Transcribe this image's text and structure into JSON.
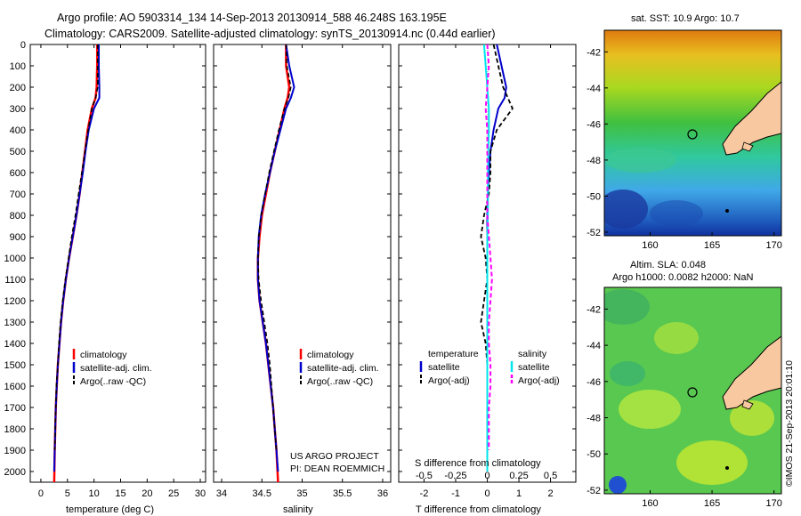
{
  "header": {
    "line1": "Argo profile: AO 5903314_134 14-Sep-2013 20130914_588 46.248S 163.195E",
    "line2": "Climatology: CARS2009. Satellite-adjusted climatology: synTS_20130914.nc (0.44d earlier)"
  },
  "colors": {
    "climatology": "#ff0000",
    "satellite_adj": "#0000cc",
    "argo": "#000000",
    "salinity_sat": "#00e5ee",
    "salinity_argo": "#ff00ff",
    "land": "#f8c8a0"
  },
  "depth_ticks": [
    "0",
    "100",
    "200",
    "300",
    "400",
    "500",
    "600",
    "700",
    "800",
    "900",
    "1000",
    "1100",
    "1200",
    "1300",
    "1400",
    "1500",
    "1600",
    "1700",
    "1800",
    "1900",
    "2000"
  ],
  "panel_temp": {
    "xlabel": "temperature (deg C)",
    "xticks": [
      "0",
      "5",
      "10",
      "15",
      "20",
      "25",
      "30"
    ],
    "legend": [
      "climatology",
      "satellite-adj. clim.",
      "Argo(..raw -QC)"
    ]
  },
  "panel_sal": {
    "xlabel": "salinity",
    "xticks": [
      "34",
      "34.5",
      "35",
      "35.5",
      "36"
    ],
    "legend": [
      "climatology",
      "satellite-adj. clim.",
      "Argo(..raw -QC)"
    ],
    "note1": "US ARGO PROJECT",
    "note2": "PI: DEAN ROEMMICH"
  },
  "panel_diff": {
    "xlabel": "T difference from climatology",
    "xlabel_top": "S difference from climatology",
    "xticks_bottom": [
      "-2",
      "-1",
      "0",
      "1",
      "2"
    ],
    "xticks_top": [
      "-0.5",
      "-0.25",
      "0",
      "0.25",
      "0.5"
    ],
    "legend_temp_title": "temperature",
    "legend_sal_title": "salinity",
    "legend_temp": [
      "satellite",
      "Argo(-adj)"
    ],
    "legend_sal": [
      "satellite",
      "Argo(-adj)"
    ]
  },
  "map_sst": {
    "title": "sat. SST: 10.9  Argo: 10.7",
    "yticks": [
      "-42",
      "-44",
      "-46",
      "-48",
      "-50",
      "-52"
    ],
    "xticks": [
      "160",
      "165",
      "170"
    ]
  },
  "map_sla": {
    "title1": "Altim. SLA: 0.048",
    "title2": "Argo h1000: 0.0082 h2000: NaN",
    "yticks": [
      "-42",
      "-44",
      "-46",
      "-48",
      "-50",
      "-52"
    ],
    "xticks": [
      "160",
      "165",
      "170"
    ]
  },
  "footer": "©IMOS 21-Sep-2013 20:01:10",
  "chart_data": [
    {
      "type": "line",
      "xlabel": "temperature (deg C)",
      "ylabel": "",
      "xlim": [
        -2,
        31
      ],
      "ylim": [
        2050,
        0
      ],
      "series": [
        {
          "name": "climatology",
          "x": [
            10.6,
            10.6,
            10.5,
            10.3,
            9.6,
            8.8,
            8.3,
            7.8,
            7.3,
            6.7,
            6.0,
            5.3,
            4.7,
            4.2,
            3.8,
            3.5,
            3.2,
            3.0,
            2.8,
            2.7,
            2.6,
            2.5
          ],
          "y": [
            0,
            100,
            200,
            250,
            300,
            400,
            500,
            600,
            700,
            800,
            900,
            1000,
            1100,
            1200,
            1300,
            1400,
            1500,
            1600,
            1700,
            1800,
            1900,
            2050
          ]
        },
        {
          "name": "satellite-adj. clim.",
          "x": [
            10.9,
            10.9,
            11.0,
            11.0,
            10.0,
            9.0,
            8.4,
            7.9,
            7.3,
            6.7,
            6.0,
            5.3,
            4.7,
            4.2,
            3.8,
            3.5,
            3.2,
            3.0,
            2.8,
            2.7,
            2.6,
            2.5
          ],
          "y": [
            0,
            100,
            200,
            250,
            300,
            400,
            500,
            600,
            700,
            800,
            900,
            1000,
            1100,
            1200,
            1300,
            1400,
            1500,
            1600,
            1700,
            1800,
            1900,
            2000
          ]
        },
        {
          "name": "Argo(..raw -QC)",
          "x": [
            10.7,
            10.7,
            10.7,
            10.3,
            9.6,
            8.9,
            8.3,
            7.7,
            7.1,
            6.5,
            5.8,
            5.2,
            4.6,
            4.1,
            3.7,
            3.4,
            3.2,
            2.9,
            2.8,
            2.7,
            2.6
          ],
          "y": [
            0,
            100,
            200,
            250,
            300,
            400,
            500,
            600,
            700,
            800,
            900,
            1000,
            1100,
            1200,
            1300,
            1400,
            1500,
            1600,
            1700,
            1800,
            1900
          ]
        }
      ]
    },
    {
      "type": "line",
      "xlabel": "salinity",
      "ylabel": "",
      "xlim": [
        33.9,
        36.1
      ],
      "ylim": [
        2050,
        0
      ],
      "series": [
        {
          "name": "climatology",
          "x": [
            34.8,
            34.8,
            34.84,
            34.82,
            34.78,
            34.72,
            34.66,
            34.6,
            34.55,
            34.5,
            34.47,
            34.45,
            34.45,
            34.47,
            34.51,
            34.55,
            34.58,
            34.61,
            34.64,
            34.66,
            34.68,
            34.7
          ],
          "y": [
            0,
            100,
            200,
            250,
            300,
            400,
            500,
            600,
            700,
            800,
            900,
            1000,
            1100,
            1200,
            1300,
            1400,
            1500,
            1600,
            1700,
            1800,
            1900,
            2050
          ]
        },
        {
          "name": "satellite-adj. clim.",
          "x": [
            34.8,
            34.84,
            34.9,
            34.86,
            34.8,
            34.73,
            34.66,
            34.6,
            34.54,
            34.49,
            34.46,
            34.45,
            34.45,
            34.47,
            34.51,
            34.55,
            34.58,
            34.61,
            34.64,
            34.66,
            34.68,
            34.7
          ],
          "y": [
            0,
            100,
            200,
            250,
            300,
            400,
            500,
            600,
            700,
            800,
            900,
            1000,
            1100,
            1200,
            1300,
            1400,
            1500,
            1600,
            1700,
            1800,
            1900,
            2000
          ]
        },
        {
          "name": "Argo(..raw -QC)",
          "x": [
            34.8,
            34.81,
            34.86,
            34.83,
            34.78,
            34.71,
            34.65,
            34.59,
            34.54,
            34.49,
            34.46,
            34.45,
            34.46,
            34.49,
            34.53,
            34.57,
            34.6,
            34.62,
            34.64,
            34.66,
            34.68
          ],
          "y": [
            0,
            100,
            200,
            250,
            300,
            400,
            500,
            600,
            700,
            800,
            900,
            1000,
            1100,
            1200,
            1300,
            1400,
            1500,
            1600,
            1700,
            1800,
            1900
          ]
        }
      ]
    },
    {
      "type": "line",
      "xlabel": "T difference from climatology",
      "ylabel": "",
      "xlim": [
        -2.8,
        2.8
      ],
      "ylim": [
        2050,
        0
      ],
      "series": [
        {
          "name": "temperature satellite",
          "x": [
            0.3,
            0.45,
            0.6,
            0.55,
            0.35,
            0.2,
            0.1,
            0.05,
            0.02,
            0.0,
            0.0,
            0.0,
            0.0,
            0.0,
            0.0,
            0.0,
            0.0,
            0.0,
            0.0,
            0.0
          ],
          "y": [
            0,
            100,
            200,
            250,
            300,
            400,
            500,
            600,
            700,
            800,
            900,
            1000,
            1100,
            1200,
            1300,
            1400,
            1500,
            1600,
            1700,
            1800
          ]
        },
        {
          "name": "temperature Argo(-adj)",
          "x": [
            0.2,
            0.35,
            0.5,
            0.8,
            0.3,
            0.1,
            0.1,
            0.05,
            -0.1,
            -0.2,
            -0.05,
            0.0,
            -0.1,
            -0.2,
            -0.05,
            0.0,
            0.0,
            0.0,
            0.0,
            0.0
          ],
          "y": [
            0,
            100,
            200,
            300,
            400,
            500,
            600,
            700,
            800,
            900,
            1000,
            1100,
            1200,
            1300,
            1400,
            1500,
            1600,
            1700,
            1800,
            1900
          ]
        },
        {
          "name": "salinity satellite",
          "x": [
            -0.1,
            -0.05,
            0.0,
            0.05,
            0.05,
            0.03,
            0.02,
            0.02,
            0.02,
            0.0,
            0.0,
            0.0,
            0.0,
            0.0,
            0.0,
            0.0,
            0.0,
            0.0,
            0.0,
            0.0
          ],
          "y": [
            0,
            100,
            200,
            300,
            400,
            500,
            600,
            700,
            800,
            900,
            1000,
            1100,
            1200,
            1300,
            1400,
            1500,
            1600,
            1700,
            1800,
            2000
          ]
        },
        {
          "name": "salinity Argo(-adj)",
          "x": [
            0.0,
            0.05,
            0.0,
            -0.05,
            0.0,
            0.0,
            0.0,
            0.0,
            0.0,
            0.05,
            0.1,
            0.15,
            0.1,
            0.05,
            0.05,
            0.1,
            0.1,
            0.05,
            0.05,
            0.05
          ],
          "y": [
            0,
            100,
            200,
            300,
            400,
            500,
            600,
            700,
            800,
            900,
            1000,
            1100,
            1200,
            1300,
            1400,
            1500,
            1600,
            1700,
            1800,
            1900
          ]
        }
      ]
    }
  ]
}
